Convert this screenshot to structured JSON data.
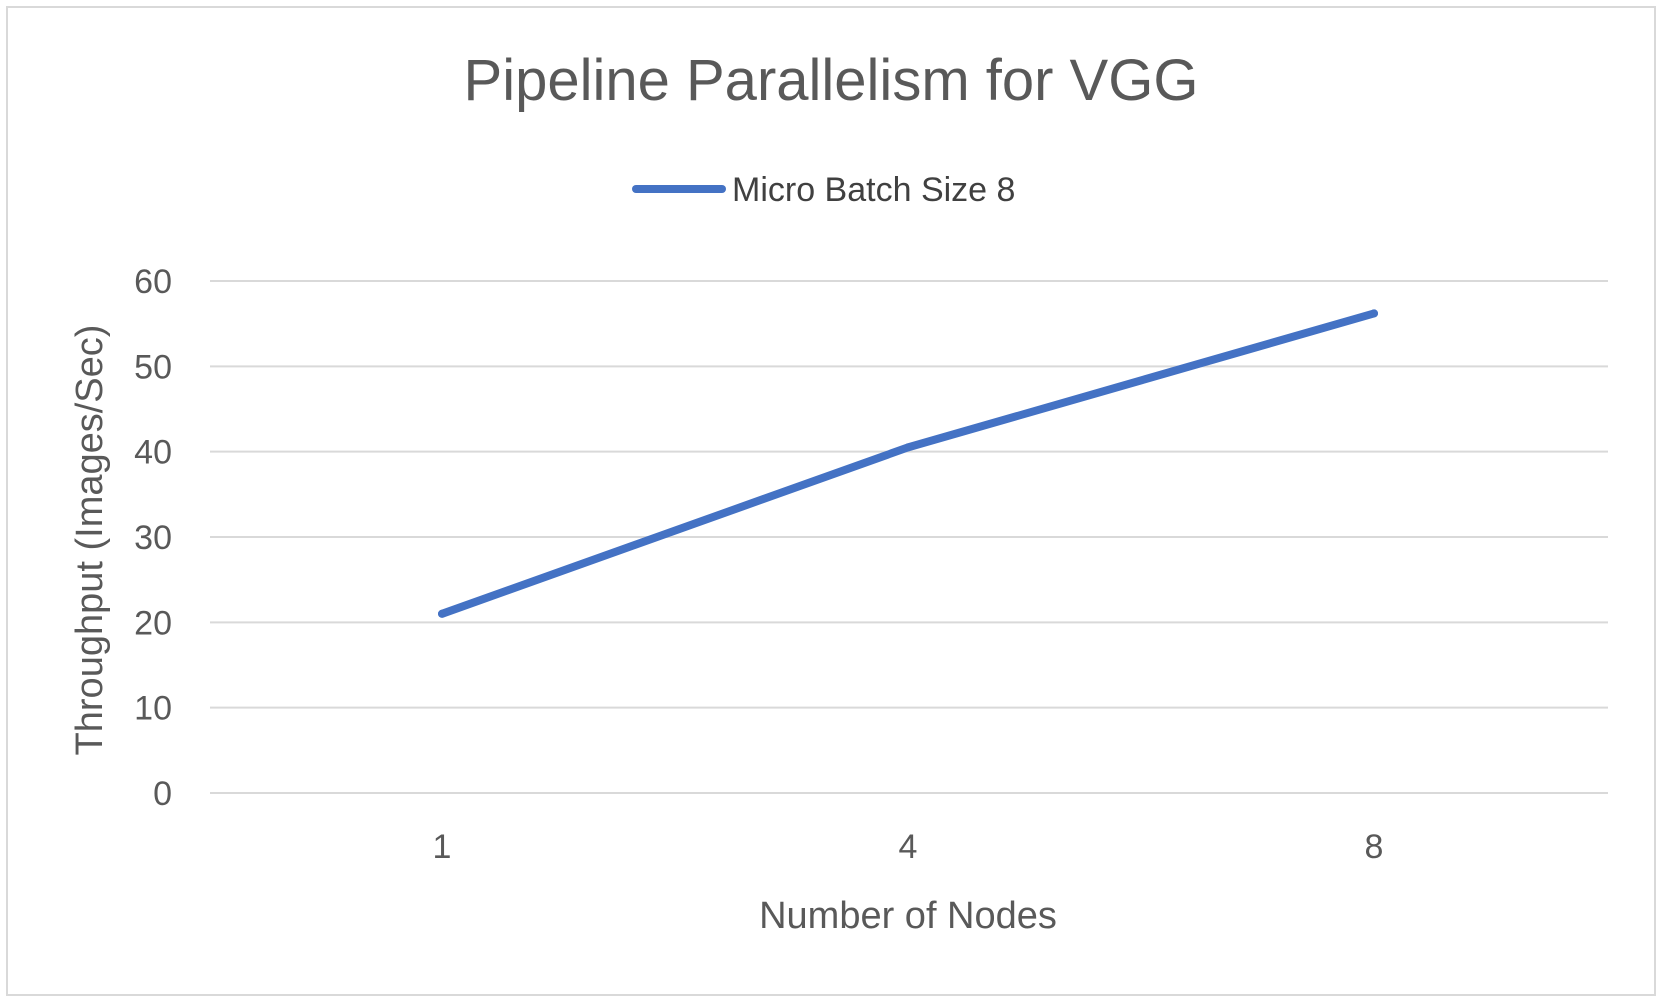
{
  "colors": {
    "series_line": "#4472C4",
    "gridline": "#d9d9d9",
    "text": "#595959",
    "background": "#ffffff"
  },
  "chart_data": {
    "type": "line",
    "title": "Pipeline Parallelism for VGG",
    "xlabel": "Number of Nodes",
    "ylabel": "Throughput (Images/Sec)",
    "categories": [
      "1",
      "4",
      "8"
    ],
    "series": [
      {
        "name": "Micro Batch Size 8",
        "values": [
          21,
          40.5,
          56.2
        ],
        "color": "#4472C4"
      }
    ],
    "ylim": [
      0,
      60
    ],
    "yticks": [
      "0",
      "10",
      "20",
      "30",
      "40",
      "50",
      "60"
    ],
    "grid": "horizontal",
    "legend_position": "top"
  }
}
